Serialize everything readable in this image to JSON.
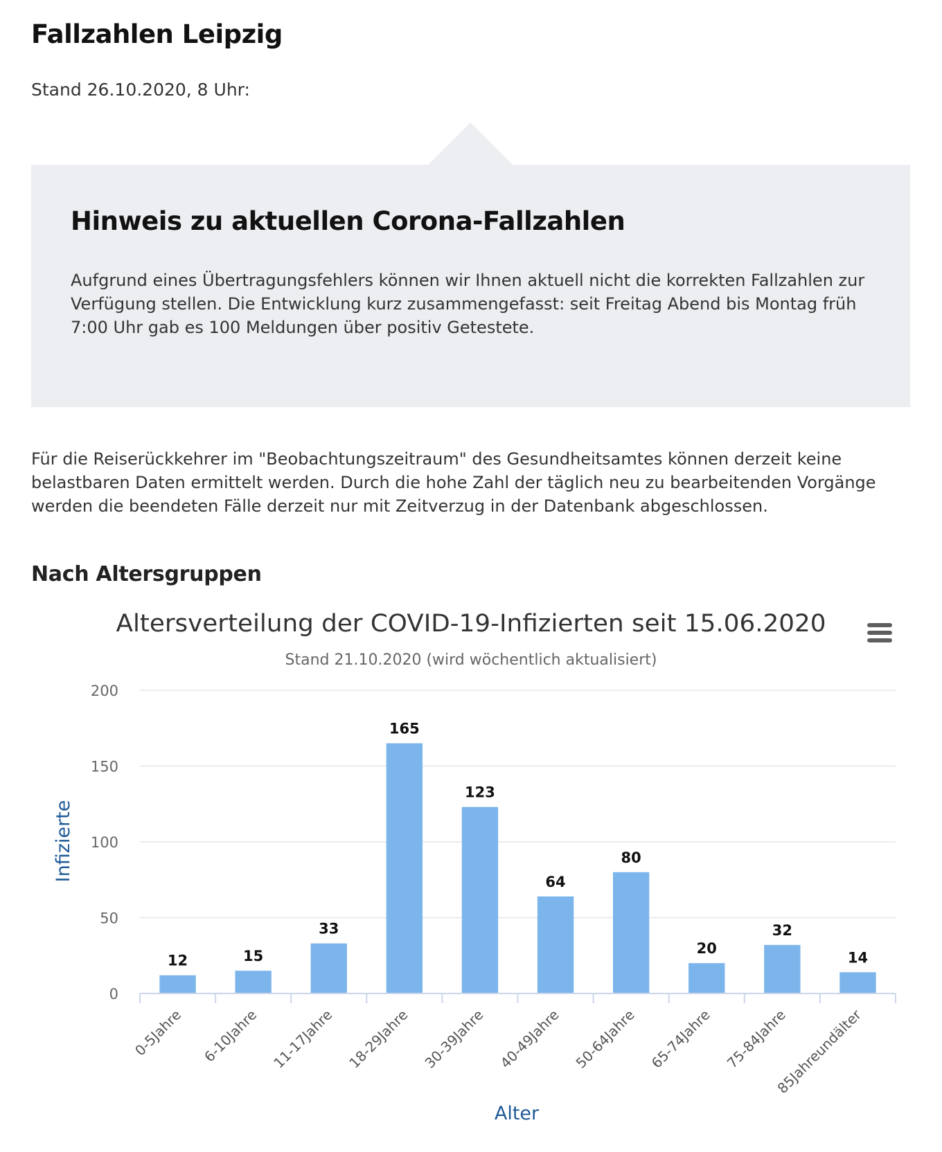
{
  "page": {
    "title": "Fallzahlen Leipzig",
    "stand": "Stand 26.10.2020, 8 Uhr:"
  },
  "notice": {
    "title": "Hinweis zu aktuellen Corona-Fallzahlen",
    "text": "Aufgrund eines Übertragungsfehlers können wir Ihnen aktuell nicht die korrekten Fallzahlen zur Verfügung stellen. Die Entwicklung kurz zusammengefasst: seit Freitag Abend bis Montag früh 7:00 Uhr gab es 100 Meldungen über positiv Getestete."
  },
  "intro": {
    "text": "Für die Reiserückkehrer im \"Beobachtungszeitraum\" des Gesundheitsamtes können derzeit keine belastbaren Daten ermittelt werden. Durch die hohe Zahl der täglich neu zu bearbeitenden Vorgänge werden die beendeten Fälle derzeit nur mit Zeitverzug in der Datenbank abgeschlossen."
  },
  "section": {
    "heading": "Nach Altersgruppen"
  },
  "chart_menu": {
    "icon": "hamburger-menu-icon"
  },
  "colors": {
    "bar": "#7cb5ec",
    "axis_title": "#1f5a96",
    "notice_background": "#eceef1"
  },
  "chart_data": {
    "type": "bar",
    "title": "Altersverteilung der COVID-19-Infizierten seit 15.06.2020",
    "subtitle": "Stand 21.10.2020 (wird wöchentlich aktualisiert)",
    "xlabel": "Alter",
    "ylabel": "Infizierte",
    "categories": [
      "0-5Jahre",
      "6-10Jahre",
      "11-17Jahre",
      "18-29Jahre",
      "30-39Jahre",
      "40-49Jahre",
      "50-64Jahre",
      "65-74Jahre",
      "75-84Jahre",
      "85Jahreundälter"
    ],
    "values": [
      12,
      15,
      33,
      165,
      123,
      64,
      80,
      20,
      32,
      14
    ],
    "ylim": [
      0,
      200
    ],
    "yticks": [
      0,
      50,
      100,
      150,
      200
    ],
    "grid": true,
    "data_labels": true,
    "legend": "none"
  }
}
